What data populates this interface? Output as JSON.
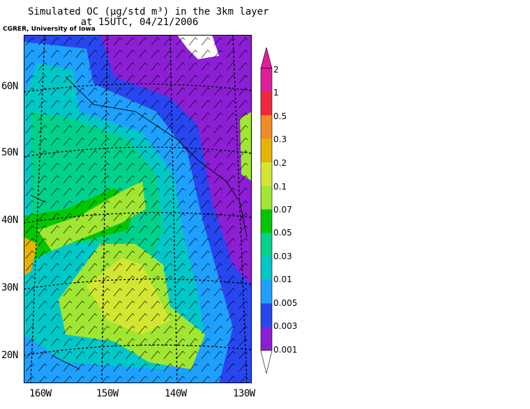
{
  "figure": {
    "title_line1": "Simulated OC (µg/std m³) in the 3km layer",
    "title_line2": "at 15UTC, 04/21/2006",
    "credit": "CGRER, University of Iowa"
  },
  "map": {
    "lat_labels": [
      "60N",
      "50N",
      "40N",
      "30N",
      "20N"
    ],
    "lon_labels": [
      "160W",
      "150W",
      "140W",
      "130W"
    ],
    "ocean_low_color": "#8c1fd4",
    "land_color": "#ffffff"
  },
  "colorbar": {
    "labels": [
      "2",
      "1",
      "0.5",
      "0.3",
      "0.2",
      "0.1",
      "0.07",
      "0.05",
      "0.03",
      "0.01",
      "0.005",
      "0.003",
      "0.001"
    ],
    "colors": [
      "#e0209a",
      "#f0283c",
      "#f08c23",
      "#e6b400",
      "#d2e632",
      "#a0e632",
      "#00c800",
      "#00d28c",
      "#00c8c8",
      "#1ea0ff",
      "#2846f0",
      "#8c1fd4"
    ]
  }
}
